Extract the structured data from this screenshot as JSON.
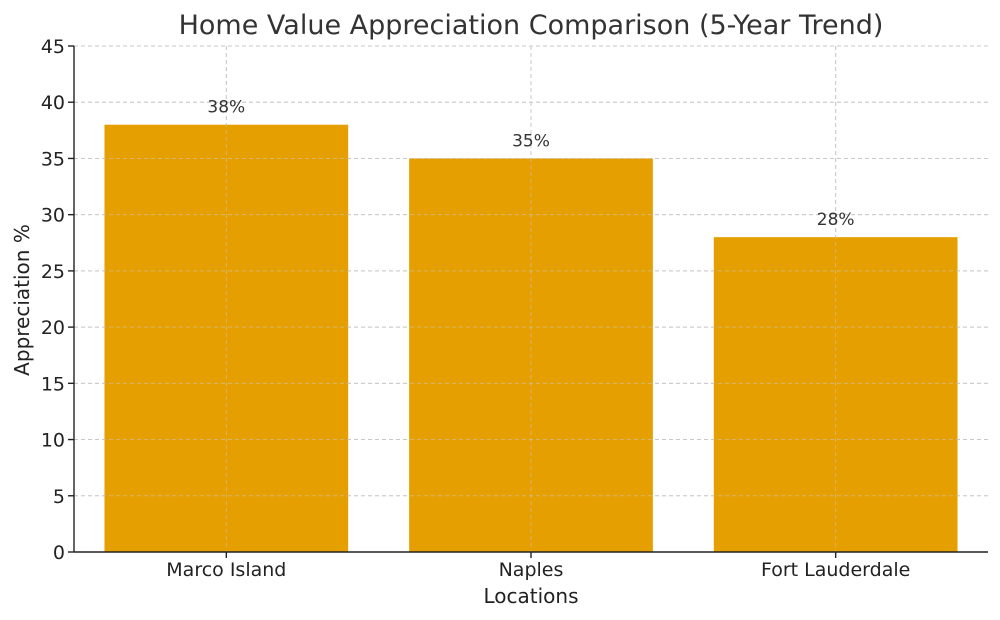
{
  "chart_data": {
    "type": "bar",
    "title": "Home Value Appreciation Comparison (5-Year Trend)",
    "xlabel": "Locations",
    "ylabel": "Appreciation %",
    "categories": [
      "Marco Island",
      "Naples",
      "Fort Lauderdale"
    ],
    "values": [
      38,
      35,
      28
    ],
    "data_labels": [
      "38%",
      "35%",
      "28%"
    ],
    "ylim": [
      0,
      45
    ],
    "yticks": [
      0,
      5,
      10,
      15,
      20,
      25,
      30,
      35,
      40,
      45
    ],
    "grid": true,
    "colors": {
      "bar": "#E69F00"
    }
  }
}
